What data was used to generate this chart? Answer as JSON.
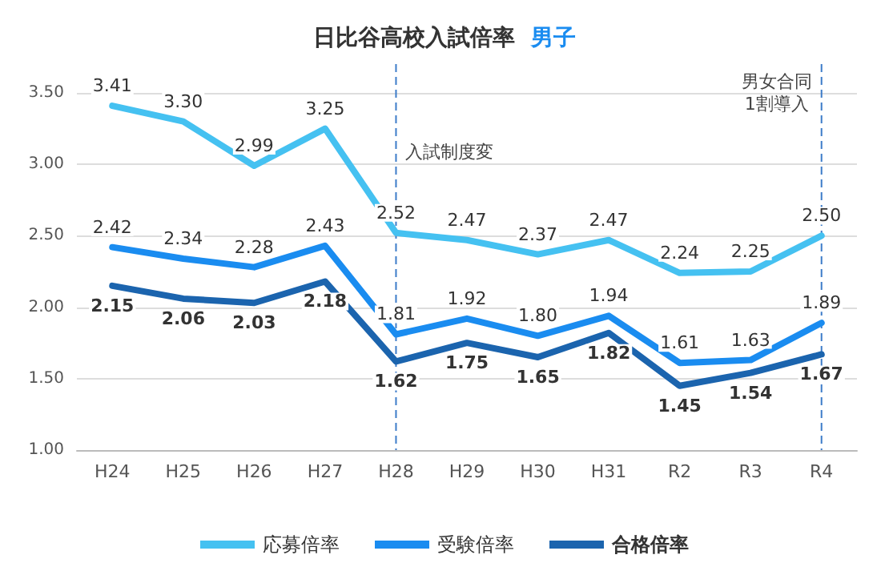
{
  "chart_data": {
    "type": "line",
    "title": "日比谷高校入試倍率 男子",
    "categories": [
      "H24",
      "H25",
      "H26",
      "H27",
      "H28",
      "H29",
      "H30",
      "H31",
      "R2",
      "R3",
      "R4"
    ],
    "series": [
      {
        "name": "応募倍率",
        "color": "#45c1f1",
        "values": [
          3.41,
          3.3,
          2.99,
          3.25,
          2.52,
          2.47,
          2.37,
          2.47,
          2.24,
          2.25,
          2.5
        ],
        "value_labels": [
          "3.41",
          "3.30",
          "2.99",
          "3.25",
          "2.52",
          "2.47",
          "2.37",
          "2.47",
          "2.24",
          "2.25",
          "2.50"
        ]
      },
      {
        "name": "受験倍率",
        "color": "#1a8cf0",
        "values": [
          2.42,
          2.34,
          2.28,
          2.43,
          1.81,
          1.92,
          1.8,
          1.94,
          1.61,
          1.63,
          1.89
        ],
        "value_labels": [
          "2.42",
          "2.34",
          "2.28",
          "2.43",
          "1.81",
          "1.92",
          "1.80",
          "1.94",
          "1.61",
          "1.63",
          "1.89"
        ]
      },
      {
        "name": "合格倍率",
        "color": "#1b64ae",
        "values": [
          2.15,
          2.06,
          2.03,
          2.18,
          1.62,
          1.75,
          1.65,
          1.82,
          1.45,
          1.54,
          1.67
        ],
        "value_labels": [
          "2.15",
          "2.06",
          "2.03",
          "2.18",
          "1.62",
          "1.75",
          "1.65",
          "1.82",
          "1.45",
          "1.54",
          "1.67"
        ]
      }
    ],
    "ylim": [
      1,
      3.5
    ],
    "yticks": [
      {
        "value": 1,
        "label": "1.00"
      },
      {
        "value": 1.5,
        "label": "1.50"
      },
      {
        "value": 2,
        "label": "2.00"
      },
      {
        "value": 2.5,
        "label": "2.50"
      },
      {
        "value": 3,
        "label": "3.00"
      },
      {
        "value": 3.5,
        "label": "3.50"
      }
    ],
    "grid": "y",
    "legend": "bottom",
    "marker": "none",
    "line_style": "solid",
    "ref_lines": [
      {
        "axis": "x",
        "value": "H28",
        "label": "入試制度変",
        "color": "#3d7cc9",
        "line_style": "dashed"
      },
      {
        "axis": "x",
        "value": "R4",
        "label": "男女合同\n1割導入",
        "color": "#3d7cc9",
        "line_style": "dashed"
      }
    ]
  }
}
